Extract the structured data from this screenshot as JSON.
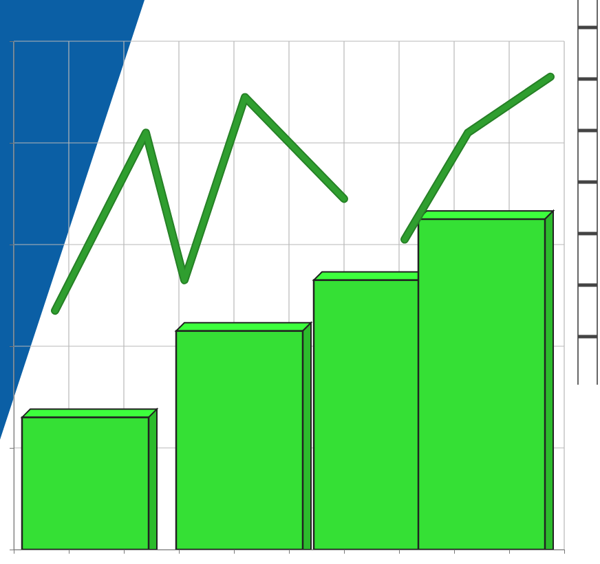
{
  "chart_data": {
    "type": "bar",
    "xlim": [
      0,
      10
    ],
    "ylim": [
      0,
      10
    ],
    "xticks": [
      0,
      1,
      2,
      3,
      4,
      5,
      6,
      7,
      8,
      9,
      10
    ],
    "yticks": [
      0,
      2,
      4,
      6,
      8,
      10
    ],
    "grid": true,
    "tick_labels": false,
    "series": [
      {
        "type": "bar",
        "color": "#35e035",
        "x": [
          1.3,
          4.1,
          6.6,
          8.5
        ],
        "values": [
          2.6,
          4.3,
          5.3,
          6.5
        ]
      },
      {
        "type": "line",
        "color": "#2f9e2f",
        "x": [
          0.75,
          2.4,
          3.1,
          4.2,
          6.0,
          6.5,
          7.1,
          8.25,
          9.75
        ],
        "values": [
          4.7,
          8.2,
          5.3,
          8.9,
          6.9,
          null,
          6.1,
          8.2,
          9.3
        ]
      }
    ]
  }
}
